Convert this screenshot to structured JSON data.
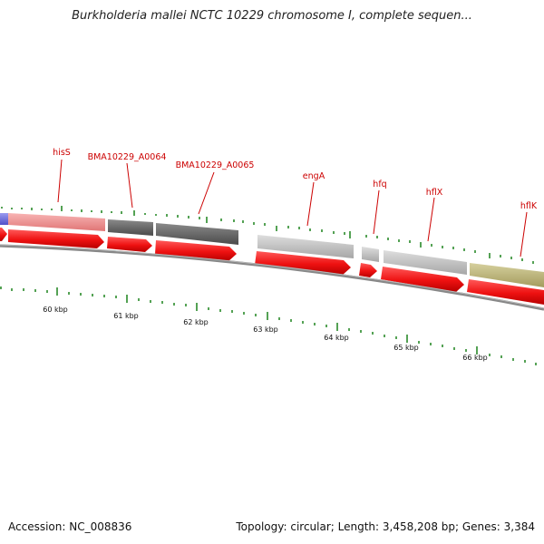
{
  "header": {
    "title": "Burkholderia mallei NCTC 10229 chromosome I, complete sequen..."
  },
  "footer": {
    "accession": "Accession: NC_008836",
    "summary": "Topology: circular; Length: 3,458,208 bp; Genes: 3,384"
  },
  "genome_map": {
    "scale_labels": [
      "60 kbp",
      "61 kbp",
      "62 kbp",
      "63 kbp",
      "64 kbp",
      "65 kbp",
      "66 kbp"
    ],
    "feature_labels": [
      "hisS",
      "BMA10229_A0064",
      "BMA10229_A0065",
      "engA",
      "hfq",
      "hflX",
      "hflK"
    ],
    "colors": {
      "cds_red": "#ee1111",
      "label_red": "#cc0000",
      "gc_skew_green": "#2a8a2a",
      "backbone": "#888888",
      "blue_feature": "#6a6adc",
      "pink_feature": "#ef8f8f",
      "dark_gray_feature": "#5e5e5e",
      "light_gray_feature": "#bdbdbd",
      "khaki_feature": "#bdb57a"
    }
  }
}
